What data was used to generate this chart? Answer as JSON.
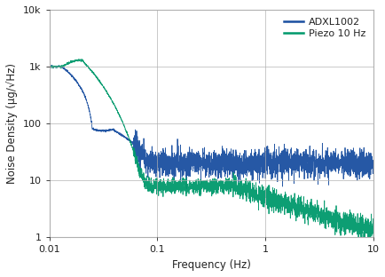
{
  "title": "",
  "xlabel": "Frequency (Hz)",
  "ylabel": "Noise Density (μg/√Hz)",
  "xlim": [
    0.01,
    10
  ],
  "ylim": [
    1,
    10000
  ],
  "legend": [
    "ADXL1002",
    "Piezo 10 Hz"
  ],
  "blue_color": "#1a4fa0",
  "green_color": "#00996b",
  "background_color": "#ffffff",
  "grid_color": "#b0b0b0"
}
